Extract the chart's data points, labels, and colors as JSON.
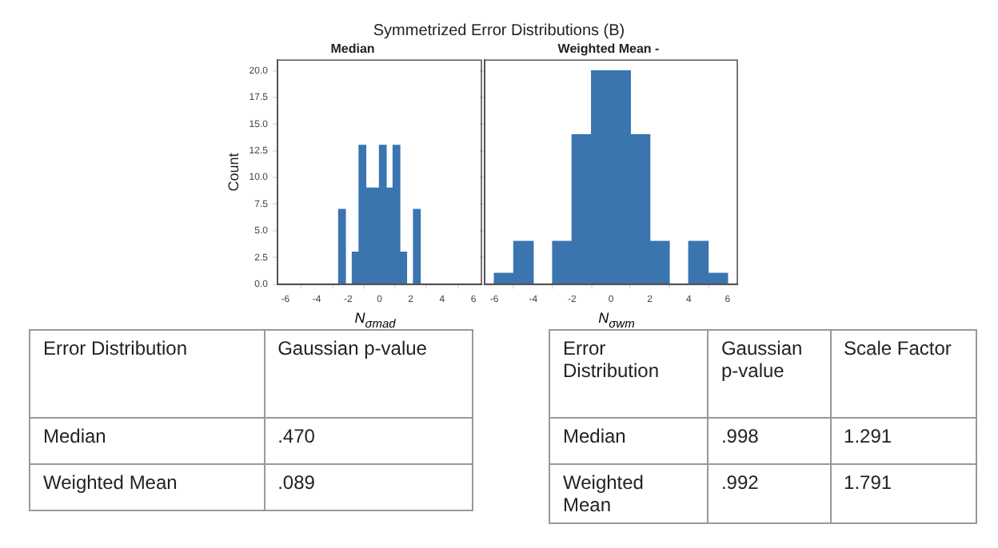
{
  "chart_data": [
    {
      "type": "histogram",
      "title": "Median",
      "annotations": [
        "Symmetrized Error Distributions (B)"
      ],
      "xlabel": "N$_{σmad}$",
      "ylabel": "Count",
      "color": "#3a75b0",
      "grid": false,
      "bins": [
        -2.6,
        -2.17,
        -1.73,
        -1.3,
        -0.87,
        -0.43,
        0,
        0.43,
        0.87,
        1.3,
        1.73,
        2.17,
        2.6
      ],
      "values": [
        7,
        0,
        3,
        13,
        9,
        9,
        13,
        9,
        13,
        3,
        0,
        7
      ],
      "xlim": [
        -6.5,
        6.5
      ],
      "xticks": [
        -6,
        -4,
        -2,
        0,
        2,
        4,
        6
      ],
      "ylim": [
        0,
        21
      ],
      "yticks": [
        {
          "value": 0,
          "label": "0.0"
        },
        {
          "value": 2.5,
          "label": "2.5"
        },
        {
          "value": 5,
          "label": "5.0"
        },
        {
          "value": 7.5,
          "label": "7.5"
        },
        {
          "value": 10,
          "label": "10.0"
        },
        {
          "value": 12.5,
          "label": "12.5"
        },
        {
          "value": 15,
          "label": "15.0"
        },
        {
          "value": 17.5,
          "label": "17.5"
        },
        {
          "value": 20,
          "label": "20.0"
        }
      ]
    },
    {
      "type": "histogram",
      "title": "Weighted Mean -",
      "xlabel": "N$_{σwm}$",
      "color": "#3a75b0",
      "grid": false,
      "tick_labels": "x",
      "bins": [
        -6,
        -5,
        -4,
        -3,
        -2,
        -1,
        0,
        1,
        2,
        3,
        4,
        5,
        6
      ],
      "values": [
        1,
        4,
        0,
        4,
        14,
        20,
        20,
        14,
        4,
        0,
        4,
        1
      ],
      "xlim": [
        -6.5,
        6.5
      ],
      "xticks": [
        -6,
        -4,
        -2,
        0,
        2,
        4,
        6
      ],
      "ylim": [
        0,
        21
      ],
      "yticks": [
        0,
        2.5,
        5,
        7.5,
        10,
        12.5,
        15,
        17.5,
        20
      ]
    },
    {
      "type": "other",
      "categories": [
        "Error Distribution",
        "Gaussian p-value"
      ],
      "annotations": [
        "Median",
        ".470",
        "Weighted Mean",
        ".089"
      ]
    },
    {
      "type": "other",
      "categories": [
        "Error Distribution",
        "Gaussian p-value",
        "Scale Factor"
      ],
      "annotations": [
        "Median",
        ".998",
        "1.291",
        "Weighted Mean",
        ".992",
        "1.791"
      ]
    }
  ]
}
